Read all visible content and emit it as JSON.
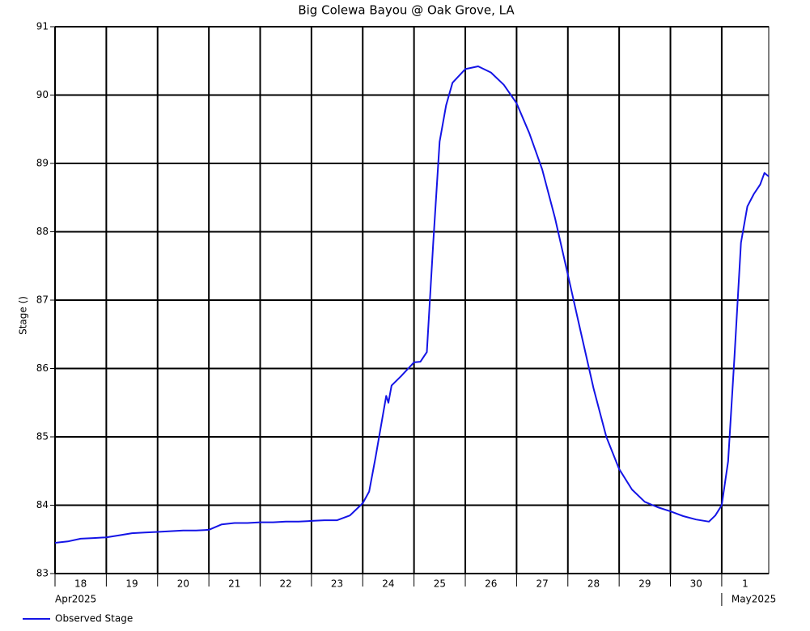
{
  "chart_data": {
    "type": "line",
    "title": "Big Colewa Bayou @ Oak Grove, LA",
    "y_label": "Stage ()",
    "x": [
      "2025-04-18T00:00",
      "2025-04-18T06:00",
      "2025-04-18T12:00",
      "2025-04-18T18:00",
      "2025-04-19T00:00",
      "2025-04-19T06:00",
      "2025-04-19T12:00",
      "2025-04-19T18:00",
      "2025-04-20T00:00",
      "2025-04-20T06:00",
      "2025-04-20T12:00",
      "2025-04-20T18:00",
      "2025-04-21T00:00",
      "2025-04-21T06:00",
      "2025-04-21T12:00",
      "2025-04-21T18:00",
      "2025-04-22T00:00",
      "2025-04-22T06:00",
      "2025-04-22T12:00",
      "2025-04-22T18:00",
      "2025-04-23T00:00",
      "2025-04-23T06:00",
      "2025-04-23T12:00",
      "2025-04-23T18:00",
      "2025-04-24T00:00",
      "2025-04-24T03:00",
      "2025-04-24T06:00",
      "2025-04-24T11:00",
      "2025-04-24T12:00",
      "2025-04-24T13:30",
      "2025-04-24T18:00",
      "2025-04-25T00:00",
      "2025-04-25T03:00",
      "2025-04-25T06:00",
      "2025-04-25T09:00",
      "2025-04-25T12:00",
      "2025-04-25T15:00",
      "2025-04-25T18:00",
      "2025-04-26T00:00",
      "2025-04-26T06:00",
      "2025-04-26T12:00",
      "2025-04-26T18:00",
      "2025-04-27T00:00",
      "2025-04-27T06:00",
      "2025-04-27T12:00",
      "2025-04-27T18:00",
      "2025-04-28T00:00",
      "2025-04-28T06:00",
      "2025-04-28T12:00",
      "2025-04-28T18:00",
      "2025-04-29T00:00",
      "2025-04-29T06:00",
      "2025-04-29T12:00",
      "2025-04-29T18:00",
      "2025-04-30T00:00",
      "2025-04-30T06:00",
      "2025-04-30T12:00",
      "2025-04-30T18:00",
      "2025-04-30T21:00",
      "2025-05-01T00:00",
      "2025-05-01T03:00",
      "2025-05-01T06:00",
      "2025-05-01T09:00",
      "2025-05-01T12:00",
      "2025-05-01T15:00",
      "2025-05-01T18:00",
      "2025-05-01T20:00",
      "2025-05-01T22:00"
    ],
    "series": [
      {
        "name": "Observed Stage",
        "color": "#1414e6",
        "values": [
          83.45,
          83.47,
          83.51,
          83.52,
          83.53,
          83.56,
          83.59,
          83.6,
          83.61,
          83.62,
          83.63,
          83.63,
          83.64,
          83.72,
          83.74,
          83.74,
          83.75,
          83.75,
          83.76,
          83.76,
          83.77,
          83.78,
          83.78,
          83.85,
          84.03,
          84.2,
          84.7,
          85.6,
          85.5,
          85.75,
          85.89,
          86.09,
          86.1,
          86.24,
          87.84,
          89.32,
          89.85,
          90.18,
          90.38,
          90.42,
          90.33,
          90.15,
          89.88,
          89.44,
          88.91,
          88.2,
          87.37,
          86.54,
          85.71,
          85.0,
          84.53,
          84.23,
          84.05,
          83.97,
          83.91,
          83.84,
          83.79,
          83.76,
          83.85,
          84.0,
          84.64,
          86.18,
          87.84,
          88.37,
          88.55,
          88.69,
          88.86,
          88.81
        ]
      }
    ],
    "xlim": [
      "2025-04-18T00:00",
      "2025-05-01T22:00"
    ],
    "ylim": [
      83,
      91
    ],
    "yticks": [
      83,
      84,
      85,
      86,
      87,
      88,
      89,
      90,
      91
    ],
    "day_labels": [
      {
        "value": "2025-04-18T00:00",
        "label": "18"
      },
      {
        "value": "2025-04-19T00:00",
        "label": "19"
      },
      {
        "value": "2025-04-20T00:00",
        "label": "20"
      },
      {
        "value": "2025-04-21T00:00",
        "label": "21"
      },
      {
        "value": "2025-04-22T00:00",
        "label": "22"
      },
      {
        "value": "2025-04-23T00:00",
        "label": "23"
      },
      {
        "value": "2025-04-24T00:00",
        "label": "24"
      },
      {
        "value": "2025-04-25T00:00",
        "label": "25"
      },
      {
        "value": "2025-04-26T00:00",
        "label": "26"
      },
      {
        "value": "2025-04-27T00:00",
        "label": "27"
      },
      {
        "value": "2025-04-28T00:00",
        "label": "28"
      },
      {
        "value": "2025-04-29T00:00",
        "label": "29"
      },
      {
        "value": "2025-04-30T00:00",
        "label": "30"
      },
      {
        "value": "2025-05-01T00:00",
        "label": "1"
      }
    ],
    "month_labels": [
      {
        "value": "2025-04-18T00:00",
        "label": "Apr2025"
      },
      {
        "value": "2025-05-01T00:00",
        "label": "May2025"
      }
    ],
    "grid": true
  }
}
